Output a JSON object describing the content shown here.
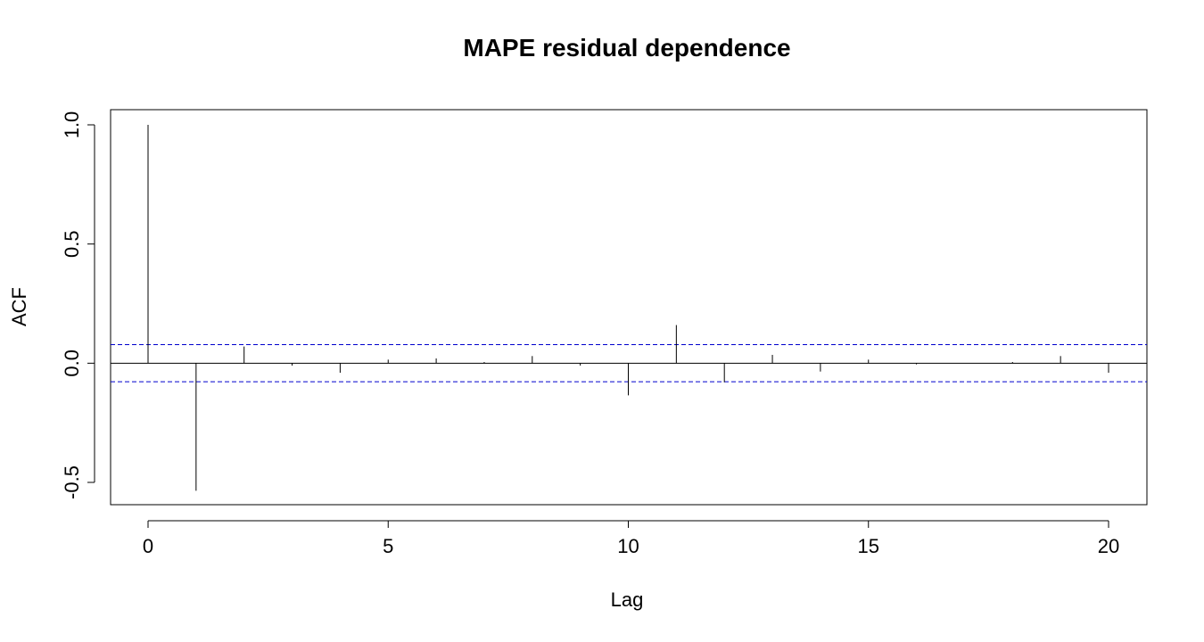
{
  "chart_data": {
    "type": "bar",
    "title": "MAPE residual dependence",
    "xlabel": "Lag",
    "ylabel": "ACF",
    "xlim": [
      0,
      20
    ],
    "ylim": [
      -0.5,
      1.0
    ],
    "x_ticks": [
      0,
      5,
      10,
      15,
      20
    ],
    "x_tick_labels": [
      "0",
      "5",
      "10",
      "15",
      "20"
    ],
    "y_ticks": [
      -0.5,
      0.0,
      0.5,
      1.0
    ],
    "y_tick_labels": [
      "-0.5",
      "0.0",
      "0.5",
      "1.0"
    ],
    "lags": [
      0,
      1,
      2,
      3,
      4,
      5,
      6,
      7,
      8,
      9,
      10,
      11,
      12,
      13,
      14,
      15,
      16,
      17,
      18,
      19,
      20
    ],
    "acf": [
      1.0,
      -0.535,
      0.07,
      -0.01,
      -0.04,
      0.015,
      0.02,
      0.005,
      0.03,
      -0.01,
      -0.135,
      0.16,
      -0.08,
      0.035,
      -0.035,
      0.015,
      -0.005,
      0.0,
      0.005,
      0.03,
      -0.04
    ],
    "confidence_bound": 0.078,
    "grid": false,
    "colors": {
      "bars": "#000000",
      "bounds": "#0000cd",
      "axes": "#000000"
    }
  }
}
